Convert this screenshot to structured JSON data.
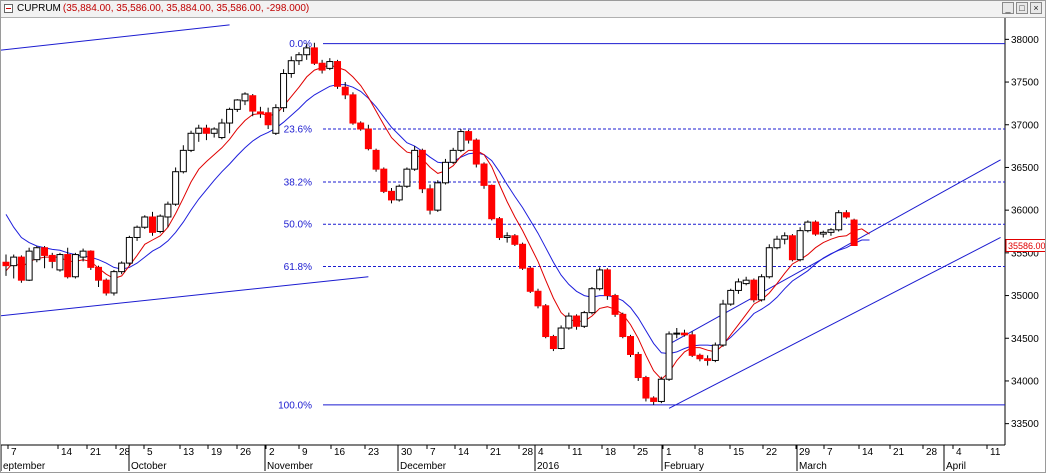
{
  "window": {
    "symbol": "CUPRUM",
    "ohlc_text": "(35,884.00, 35,586.00, 35,884.00, 35,586.00, -298.000)",
    "buttons": [
      "_",
      "□",
      "×"
    ]
  },
  "chart_data": {
    "type": "candlestick",
    "title": "CUPRUM",
    "ylim": [
      33250,
      38250
    ],
    "y_ticks": [
      33500,
      34000,
      34500,
      35000,
      35500,
      36000,
      36500,
      37000,
      37500,
      38000
    ],
    "last_price_label": "35586.00",
    "day_ticks": [
      "7",
      "14",
      "21",
      "28",
      "5",
      "13",
      "19",
      "26",
      "2",
      "9",
      "16",
      "23",
      "30",
      "7",
      "14",
      "21",
      "28",
      "4",
      "11",
      "18",
      "25",
      "1",
      "8",
      "15",
      "22",
      "29",
      "7",
      "14",
      "21",
      "28",
      "4",
      "11"
    ],
    "month_labels": [
      "eptember",
      "October",
      "November",
      "December",
      "2016",
      "February",
      "March",
      "April"
    ],
    "fibonacci": {
      "high": 37950,
      "low": 33720,
      "levels": [
        {
          "label": "0.0%",
          "value": 37950
        },
        {
          "label": "23.6%",
          "value": 36950
        },
        {
          "label": "38.2%",
          "value": 36330
        },
        {
          "label": "50.0%",
          "value": 35835
        },
        {
          "label": "61.8%",
          "value": 35340
        },
        {
          "label": "100.0%",
          "value": 33720
        }
      ]
    },
    "candles": [
      [
        35390,
        35480,
        35230,
        35350
      ],
      [
        35350,
        35480,
        35200,
        35450
      ],
      [
        35450,
        35470,
        35150,
        35180
      ],
      [
        35180,
        35560,
        35170,
        35520
      ],
      [
        35420,
        35580,
        35390,
        35560
      ],
      [
        35560,
        35580,
        35320,
        35470
      ],
      [
        35470,
        35500,
        35320,
        35400
      ],
      [
        35300,
        35500,
        35280,
        35480
      ],
      [
        35480,
        35560,
        35200,
        35220
      ],
      [
        35220,
        35500,
        35200,
        35480
      ],
      [
        35450,
        35550,
        35400,
        35520
      ],
      [
        35520,
        35530,
        35300,
        35330
      ],
      [
        35330,
        35350,
        35100,
        35180
      ],
      [
        35180,
        35200,
        35000,
        35030
      ],
      [
        35030,
        35300,
        35000,
        35280
      ],
      [
        35280,
        35400,
        35250,
        35380
      ],
      [
        35380,
        35700,
        35350,
        35680
      ],
      [
        35680,
        35820,
        35640,
        35800
      ],
      [
        35800,
        35940,
        35780,
        35920
      ],
      [
        35920,
        35980,
        35700,
        35740
      ],
      [
        35750,
        35950,
        35730,
        35930
      ],
      [
        35920,
        36100,
        35800,
        36070
      ],
      [
        36070,
        36500,
        36050,
        36450
      ],
      [
        36450,
        36760,
        36430,
        36700
      ],
      [
        36700,
        36930,
        36680,
        36900
      ],
      [
        36900,
        37000,
        36800,
        36960
      ],
      [
        36960,
        37000,
        36820,
        36900
      ],
      [
        36900,
        36970,
        36850,
        36950
      ],
      [
        36850,
        37070,
        36830,
        37020
      ],
      [
        37020,
        37200,
        36900,
        37180
      ],
      [
        37180,
        37300,
        37150,
        37290
      ],
      [
        37280,
        37380,
        37230,
        37360
      ],
      [
        37340,
        37360,
        37100,
        37160
      ],
      [
        37150,
        37210,
        37080,
        37130
      ],
      [
        37140,
        37200,
        36950,
        37000
      ],
      [
        36900,
        37240,
        36880,
        37200
      ],
      [
        37200,
        37650,
        37150,
        37600
      ],
      [
        37600,
        37800,
        37550,
        37750
      ],
      [
        37750,
        37850,
        37700,
        37820
      ],
      [
        37820,
        37950,
        37760,
        37900
      ],
      [
        37900,
        37960,
        37700,
        37720
      ],
      [
        37720,
        37760,
        37600,
        37640
      ],
      [
        37660,
        37780,
        37640,
        37740
      ],
      [
        37740,
        37760,
        37420,
        37450
      ],
      [
        37440,
        37500,
        37300,
        37350
      ],
      [
        37350,
        37380,
        37000,
        37020
      ],
      [
        37020,
        37040,
        36930,
        36950
      ],
      [
        36950,
        37000,
        36700,
        36720
      ],
      [
        36700,
        36720,
        36450,
        36480
      ],
      [
        36480,
        36500,
        36200,
        36220
      ],
      [
        36220,
        36260,
        36080,
        36120
      ],
      [
        36120,
        36300,
        36100,
        36280
      ],
      [
        36280,
        36500,
        36260,
        36480
      ],
      [
        36480,
        36750,
        36460,
        36700
      ],
      [
        36700,
        36720,
        36200,
        36250
      ],
      [
        36250,
        36300,
        35950,
        36000
      ],
      [
        36000,
        36350,
        35980,
        36320
      ],
      [
        36320,
        36600,
        36300,
        36560
      ],
      [
        36560,
        36730,
        36540,
        36700
      ],
      [
        36700,
        36950,
        36680,
        36920
      ],
      [
        36920,
        36940,
        36780,
        36820
      ],
      [
        36820,
        36840,
        36500,
        36540
      ],
      [
        36540,
        36560,
        36250,
        36290
      ],
      [
        36290,
        36300,
        35880,
        35900
      ],
      [
        35900,
        35920,
        35650,
        35680
      ],
      [
        35680,
        35740,
        35620,
        35700
      ],
      [
        35700,
        35720,
        35580,
        35600
      ],
      [
        35600,
        35620,
        35300,
        35320
      ],
      [
        35320,
        35340,
        35030,
        35050
      ],
      [
        35050,
        35080,
        34850,
        34880
      ],
      [
        34880,
        34900,
        34500,
        34520
      ],
      [
        34520,
        34540,
        34350,
        34380
      ],
      [
        34380,
        34650,
        34370,
        34620
      ],
      [
        34620,
        34800,
        34600,
        34760
      ],
      [
        34760,
        34780,
        34600,
        34640
      ],
      [
        34640,
        34820,
        34620,
        34800
      ],
      [
        34800,
        35100,
        34780,
        35080
      ],
      [
        35080,
        35330,
        35060,
        35300
      ],
      [
        35300,
        35320,
        34950,
        35000
      ],
      [
        35000,
        35020,
        34750,
        34780
      ],
      [
        34780,
        34800,
        34500,
        34520
      ],
      [
        34520,
        34540,
        34280,
        34310
      ],
      [
        34310,
        34340,
        34000,
        34040
      ],
      [
        34040,
        34060,
        33760,
        33800
      ],
      [
        33800,
        33820,
        33720,
        33760
      ],
      [
        33760,
        34050,
        33740,
        34020
      ],
      [
        34020,
        34580,
        34000,
        34550
      ],
      [
        34550,
        34620,
        34500,
        34560
      ],
      [
        34560,
        34600,
        34520,
        34540
      ],
      [
        34540,
        34580,
        34280,
        34300
      ],
      [
        34300,
        34320,
        34230,
        34260
      ],
      [
        34260,
        34300,
        34180,
        34240
      ],
      [
        34240,
        34450,
        34220,
        34420
      ],
      [
        34420,
        34950,
        34400,
        34900
      ],
      [
        34900,
        35080,
        34880,
        35060
      ],
      [
        35060,
        35200,
        35020,
        35160
      ],
      [
        35140,
        35220,
        35120,
        35180
      ],
      [
        35180,
        35200,
        34920,
        34950
      ],
      [
        34950,
        35250,
        34930,
        35220
      ],
      [
        35220,
        35600,
        35200,
        35560
      ],
      [
        35560,
        35700,
        35540,
        35660
      ],
      [
        35660,
        35740,
        35600,
        35700
      ],
      [
        35700,
        35720,
        35400,
        35420
      ],
      [
        35420,
        35800,
        35400,
        35760
      ],
      [
        35760,
        35880,
        35740,
        35860
      ],
      [
        35860,
        35880,
        35700,
        35720
      ],
      [
        35720,
        35760,
        35680,
        35740
      ],
      [
        35740,
        35790,
        35700,
        35770
      ],
      [
        35770,
        36000,
        35750,
        35970
      ],
      [
        35970,
        36000,
        35900,
        35920
      ],
      [
        35884,
        35900,
        35580,
        35586
      ]
    ],
    "ma_red_line": [
      [
        35290,
        35390,
        35330,
        35400,
        35430,
        35450,
        35450,
        35450,
        35400,
        35400,
        35420,
        35400,
        35320,
        35250,
        35200,
        35230,
        35350,
        35470,
        35600,
        35650,
        35700,
        35800,
        35960,
        36140,
        36330,
        36480,
        36570,
        36650,
        36730,
        36830,
        36950,
        37050,
        37120,
        37130,
        37110,
        37120,
        37220,
        37330,
        37440,
        37560,
        37640,
        37670,
        37700,
        37670,
        37640,
        37560,
        37460,
        37320,
        37160,
        37000,
        36850,
        36760,
        36680,
        36660,
        36600,
        36500,
        36430,
        36460,
        36520,
        36630,
        36700,
        36700,
        36650,
        36510,
        36300,
        36100,
        35920,
        35760,
        35580,
        35400,
        35180,
        34970,
        34800,
        34720,
        34700,
        34700,
        34760,
        34850,
        34870,
        34840,
        34780,
        34660,
        34500,
        34300,
        34120,
        34020,
        34100,
        34240,
        34340,
        34390,
        34390,
        34360,
        34340,
        34420,
        34540,
        34660,
        34780,
        34900,
        34950,
        35030,
        35140,
        35260,
        35370,
        35420,
        35480,
        35560,
        35620,
        35660,
        35690,
        35700,
        35760,
        35780,
        35720
      ]
    ],
    "ma_blue_line": [
      [
        35950,
        35800,
        35680,
        35620,
        35580,
        35560,
        35540,
        35530,
        35500,
        35480,
        35460,
        35450,
        35420,
        35380,
        35330,
        35310,
        35330,
        35380,
        35450,
        35520,
        35570,
        35640,
        35740,
        35860,
        36000,
        36130,
        36240,
        36350,
        36450,
        36540,
        36640,
        36730,
        36810,
        36870,
        36910,
        36960,
        37030,
        37110,
        37190,
        37280,
        37350,
        37400,
        37450,
        37470,
        37470,
        37440,
        37390,
        37310,
        37210,
        37090,
        36970,
        36880,
        36790,
        36750,
        36690,
        36620,
        36560,
        36550,
        36570,
        36620,
        36660,
        36670,
        36650,
        36580,
        36450,
        36300,
        36160,
        36030,
        35880,
        35730,
        35560,
        35390,
        35240,
        35130,
        35050,
        35000,
        34980,
        35000,
        35000,
        34980,
        34940,
        34860,
        34740,
        34590,
        34440,
        34330,
        34320,
        34340,
        34380,
        34410,
        34420,
        34420,
        34410,
        34440,
        34510,
        34600,
        34690,
        34790,
        34840,
        34900,
        34980,
        35080,
        35170,
        35230,
        35290,
        35370,
        35440,
        35490,
        35530,
        35560,
        35610,
        35650,
        35650
      ]
    ],
    "trendlines": [
      {
        "from": [
          -1,
          37870
        ],
        "to": [
          29,
          38170
        ]
      },
      {
        "from": [
          -1,
          34760
        ],
        "to": [
          47,
          35220
        ]
      },
      {
        "from": [
          86,
          34430
        ],
        "to": [
          129,
          36590
        ]
      },
      {
        "from": [
          86,
          33680
        ],
        "to": [
          129,
          35680
        ]
      }
    ]
  }
}
